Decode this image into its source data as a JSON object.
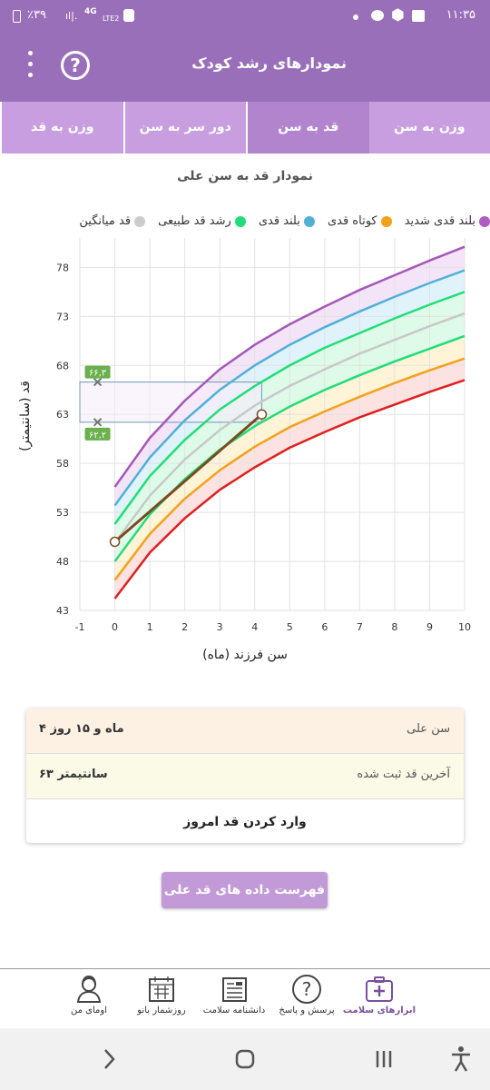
{
  "status": {
    "time": "۱۱:۳۵",
    "battery": "٪۳۹",
    "network": "4G",
    "network_sub": "LTE2"
  },
  "appbar": {
    "title": "نمودارهای رشد کودک",
    "help": "?"
  },
  "tabs": [
    {
      "label": "وزن به سن",
      "active": false
    },
    {
      "label": "قد به سن",
      "active": true
    },
    {
      "label": "دور سر به سن",
      "active": false
    },
    {
      "label": "وزن به قد",
      "active": false
    }
  ],
  "chart_title": "نمودار قد به سن علی",
  "legend": [
    {
      "label": "بلند قدی شدید",
      "color": "#b05cc0"
    },
    {
      "label": "کوتاه قدی",
      "color": "#f2a21a"
    },
    {
      "label": "بلند قدی",
      "color": "#4fb0d8"
    },
    {
      "label": "رشد قد طبیعی",
      "color": "#22dd77"
    },
    {
      "label": "قد میانگین",
      "color": "#cccccc"
    }
  ],
  "chart_data": {
    "type": "line",
    "xlabel": "سن فرزند (ماه)",
    "ylabel": "قد (سانتیمتر)",
    "xlim": [
      -1,
      10
    ],
    "ylim": [
      43,
      81
    ],
    "xticks": [
      -1,
      0,
      1,
      2,
      3,
      4,
      5,
      6,
      7,
      8,
      9,
      10
    ],
    "yticks": [
      43,
      48,
      53,
      58,
      63,
      68,
      73,
      78
    ],
    "x": [
      0,
      1,
      2,
      3,
      4,
      5,
      6,
      7,
      8,
      9,
      10
    ],
    "series": [
      {
        "color": "#a657b8",
        "values": [
          55.6,
          60.6,
          64.4,
          67.6,
          70.1,
          72.2,
          74.0,
          75.7,
          77.2,
          78.7,
          80.1
        ]
      },
      {
        "color": "#4fb0d8",
        "values": [
          53.7,
          58.6,
          62.4,
          65.5,
          68.0,
          70.1,
          71.9,
          73.5,
          75.0,
          76.4,
          77.7
        ]
      },
      {
        "color": "#22dd77",
        "values": [
          51.8,
          56.7,
          60.4,
          63.5,
          65.9,
          68.0,
          69.8,
          71.3,
          72.8,
          74.2,
          75.5
        ]
      },
      {
        "color": "#c8c8c8",
        "values": [
          49.9,
          54.7,
          58.4,
          61.4,
          63.9,
          65.9,
          67.6,
          69.2,
          70.6,
          72.0,
          73.3
        ]
      },
      {
        "color": "#22dd77",
        "values": [
          48.0,
          52.8,
          56.4,
          59.4,
          61.8,
          63.8,
          65.5,
          67.0,
          68.4,
          69.7,
          71.0
        ]
      },
      {
        "color": "#f2a21a",
        "values": [
          46.1,
          50.8,
          54.4,
          57.3,
          59.7,
          61.7,
          63.3,
          64.8,
          66.2,
          67.5,
          68.7
        ]
      },
      {
        "color": "#e01f1f",
        "values": [
          44.2,
          48.9,
          52.4,
          55.3,
          57.6,
          59.6,
          61.2,
          62.7,
          64.0,
          65.3,
          66.5
        ]
      }
    ],
    "bands": [
      {
        "from": 0,
        "to": 1,
        "fill": "#f4e4f8"
      },
      {
        "from": 1,
        "to": 2,
        "fill": "#e0f3fb"
      },
      {
        "from": 2,
        "to": 4,
        "fill": "#ddfbe8"
      },
      {
        "from": 4,
        "to": 5,
        "fill": "#fff3d8"
      },
      {
        "from": 5,
        "to": 6,
        "fill": "#fde2e2"
      }
    ],
    "child": {
      "x": [
        0,
        4.2
      ],
      "y": [
        50,
        63
      ],
      "color": "#7a4b1e"
    },
    "range": {
      "x0": -1,
      "x1": 4.2,
      "y0": 62.2,
      "y1": 66.3,
      "label_high": "۶۶,۳",
      "label_low": "۶۲,۲"
    }
  },
  "info": {
    "age_label": "سن علی",
    "age_value": "۴ ماه و ۱۵ روز",
    "height_label": "آخرین قد ثبت شده",
    "height_value": "۶۳ سانتیمتر",
    "enter_button": "وارد کردن قد امروز"
  },
  "list_button": "فهرست داده های قد علی",
  "bottom_nav": [
    {
      "label": "ابزارهای سلامت",
      "icon": "medical-kit-icon",
      "active": true
    },
    {
      "label": "پرسش و پاسخ",
      "icon": "question-icon",
      "active": false
    },
    {
      "label": "دانشنامه سلامت",
      "icon": "newspaper-icon",
      "active": false
    },
    {
      "label": "روزشمار بانو",
      "icon": "calendar-icon",
      "active": false
    },
    {
      "label": "اومای من",
      "icon": "user-avatar-icon",
      "active": false
    }
  ]
}
